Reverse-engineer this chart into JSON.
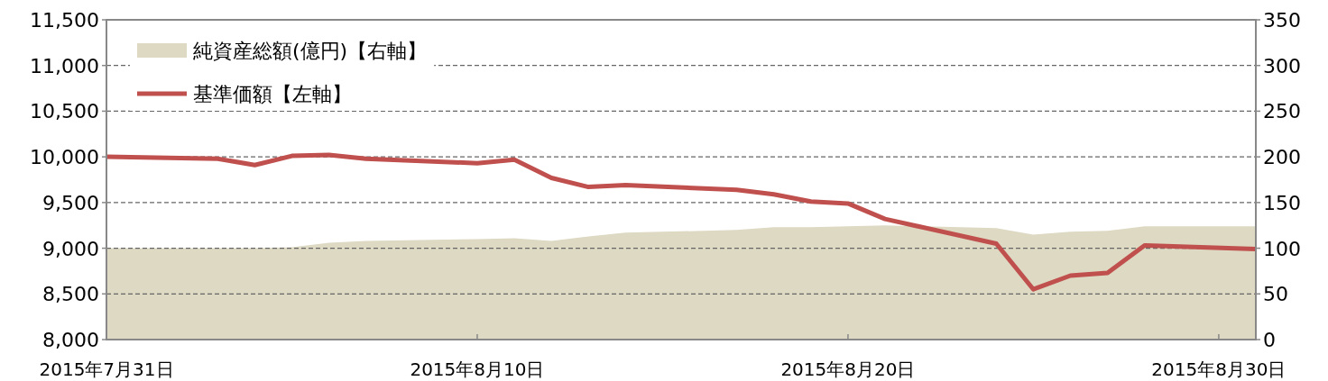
{
  "chart_data": {
    "type": "line",
    "x": [
      "2015-07-31",
      "2015-08-03",
      "2015-08-04",
      "2015-08-05",
      "2015-08-06",
      "2015-08-07",
      "2015-08-10",
      "2015-08-11",
      "2015-08-12",
      "2015-08-13",
      "2015-08-14",
      "2015-08-17",
      "2015-08-18",
      "2015-08-19",
      "2015-08-20",
      "2015-08-21",
      "2015-08-24",
      "2015-08-25",
      "2015-08-26",
      "2015-08-27",
      "2015-08-28",
      "2015-08-31"
    ],
    "series": [
      {
        "name": "純資産総額(億円)【右軸】",
        "type": "area",
        "axis": "y2",
        "color": "#ddd9c3",
        "values": [
          100,
          100,
          100,
          101,
          106,
          108,
          110,
          111,
          108,
          113,
          117,
          120,
          123,
          123,
          124,
          125,
          122,
          115,
          118,
          119,
          124,
          124
        ]
      },
      {
        "name": "基準価額【左軸】",
        "color": "#c0504d",
        "values": [
          10000,
          9980,
          9910,
          10010,
          10020,
          9980,
          9930,
          9970,
          9770,
          9670,
          9690,
          9640,
          9590,
          9510,
          9490,
          9320,
          9050,
          8550,
          8700,
          8730,
          9030,
          8990
        ]
      }
    ],
    "xlim": [
      "2015-07-31",
      "2015-08-31"
    ],
    "xticks": [
      {
        "value": "2015-07-31",
        "label": "2015年7月31日"
      },
      {
        "value": "2015-08-10",
        "label": "2015年8月10日"
      },
      {
        "value": "2015-08-20",
        "label": "2015年8月20日"
      },
      {
        "value": "2015-08-30",
        "label": "2015年8月30日"
      }
    ],
    "ylim": [
      8000,
      11500
    ],
    "yticks": [
      {
        "value": 8000,
        "label": "8,000"
      },
      {
        "value": 8500,
        "label": "8,500"
      },
      {
        "value": 9000,
        "label": "9,000"
      },
      {
        "value": 9500,
        "label": "9,500"
      },
      {
        "value": 10000,
        "label": "10,000"
      },
      {
        "value": 10500,
        "label": "10,500"
      },
      {
        "value": 11000,
        "label": "11,000"
      },
      {
        "value": 11500,
        "label": "11,500"
      }
    ],
    "y2lim": [
      0,
      350
    ],
    "y2ticks": [
      0,
      50,
      100,
      150,
      200,
      250,
      300,
      350
    ],
    "grid": "y",
    "legend": "top left"
  }
}
